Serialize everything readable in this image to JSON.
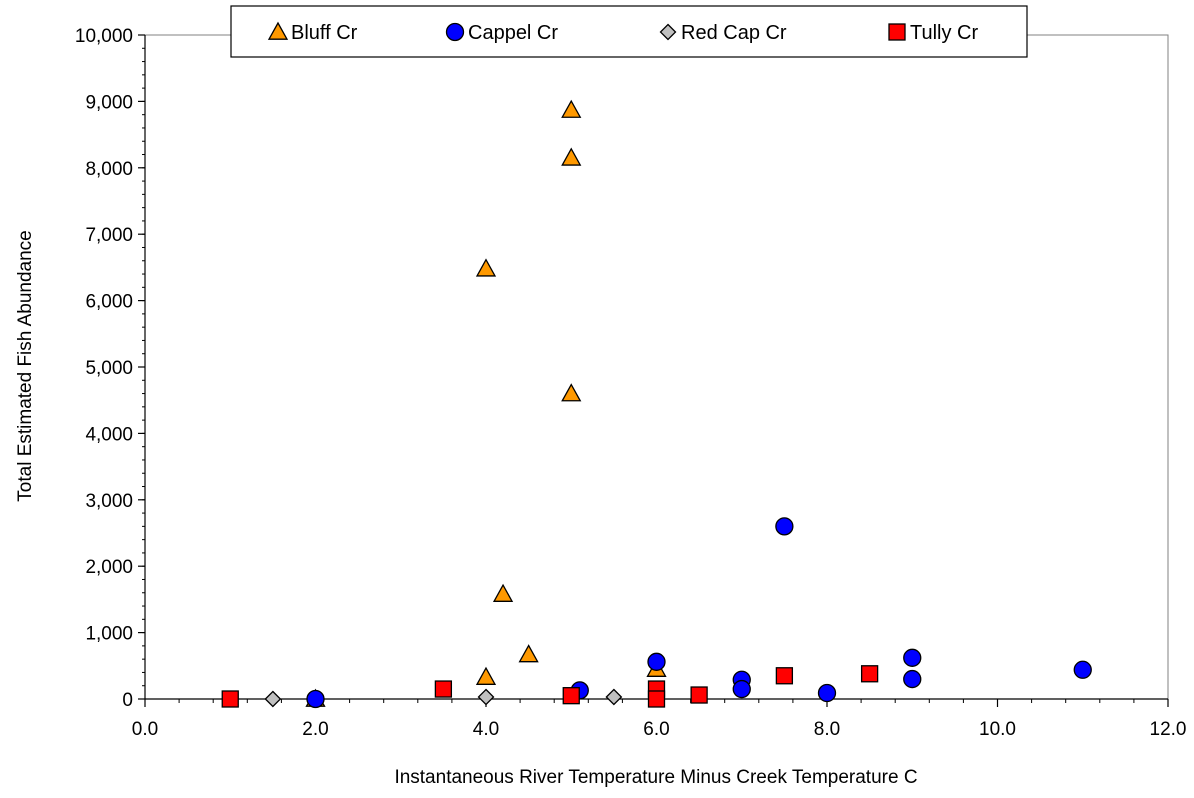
{
  "chart_data": {
    "type": "scatter",
    "title": "",
    "xlabel": "Instantaneous River Temperature Minus Creek Temperature C",
    "ylabel": "Total Estimated Fish Abundance",
    "xlim": [
      0,
      12
    ],
    "ylim": [
      0,
      10000
    ],
    "x_ticks": [
      0,
      2,
      4,
      6,
      8,
      10,
      12
    ],
    "x_tick_labels": [
      "0.0",
      "2.0",
      "4.0",
      "6.0",
      "8.0",
      "10.0",
      "12.0"
    ],
    "y_ticks": [
      0,
      1000,
      2000,
      3000,
      4000,
      5000,
      6000,
      7000,
      8000,
      9000,
      10000
    ],
    "y_tick_labels": [
      "0",
      "1,000",
      "2,000",
      "3,000",
      "4,000",
      "5,000",
      "6,000",
      "7,000",
      "8,000",
      "9,000",
      "10,000"
    ],
    "grid": false,
    "legend_position": "top-center",
    "series": [
      {
        "name": "Bluff Cr",
        "marker": "triangle",
        "color": "#FF9900",
        "points": [
          {
            "x": 2.0,
            "y": 0
          },
          {
            "x": 4.0,
            "y": 330
          },
          {
            "x": 4.0,
            "y": 6480
          },
          {
            "x": 4.2,
            "y": 1580
          },
          {
            "x": 4.5,
            "y": 670
          },
          {
            "x": 5.0,
            "y": 4600
          },
          {
            "x": 5.0,
            "y": 8150
          },
          {
            "x": 5.0,
            "y": 8870
          },
          {
            "x": 6.0,
            "y": 450
          }
        ]
      },
      {
        "name": "Cappel Cr",
        "marker": "circle",
        "color": "#0000FF",
        "points": [
          {
            "x": 2.0,
            "y": 0
          },
          {
            "x": 5.1,
            "y": 130
          },
          {
            "x": 6.0,
            "y": 560
          },
          {
            "x": 7.0,
            "y": 290
          },
          {
            "x": 7.0,
            "y": 150
          },
          {
            "x": 7.5,
            "y": 2600
          },
          {
            "x": 8.0,
            "y": 90
          },
          {
            "x": 9.0,
            "y": 620
          },
          {
            "x": 9.0,
            "y": 300
          },
          {
            "x": 11.0,
            "y": 440
          }
        ]
      },
      {
        "name": "Red Cap Cr",
        "marker": "diamond",
        "color": "#C0C0C0",
        "points": [
          {
            "x": 1.5,
            "y": 0
          },
          {
            "x": 4.0,
            "y": 30
          },
          {
            "x": 5.5,
            "y": 30
          }
        ]
      },
      {
        "name": "Tully Cr",
        "marker": "square",
        "color": "#FF0000",
        "points": [
          {
            "x": 1.0,
            "y": 0
          },
          {
            "x": 3.5,
            "y": 150
          },
          {
            "x": 5.0,
            "y": 50
          },
          {
            "x": 6.0,
            "y": 150
          },
          {
            "x": 6.0,
            "y": 0
          },
          {
            "x": 6.5,
            "y": 60
          },
          {
            "x": 7.5,
            "y": 350
          },
          {
            "x": 8.5,
            "y": 380
          }
        ]
      }
    ]
  }
}
